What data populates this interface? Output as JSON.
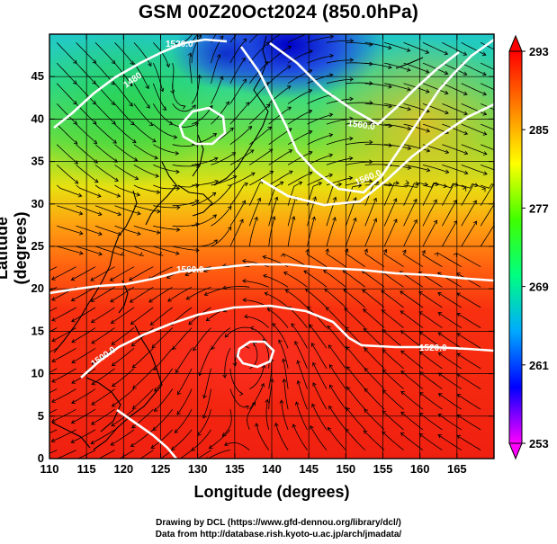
{
  "title": "GSM 00Z20Oct2024 (850.0hPa)",
  "xlabel": "Longitude (degrees)",
  "ylabel": "Latitude  (degrees)",
  "credits": {
    "line1": "Drawing by DCL (https://www.gfd-dennou.org/library/dcl/)",
    "line2": "Data from http://database.rish.kyoto-u.ac.jp/arch/jmadata/"
  },
  "map": {
    "lon_range": [
      110,
      170
    ],
    "lat_range": [
      0,
      50
    ],
    "lon_ticks": [
      "110",
      "115",
      "120",
      "125",
      "130",
      "135",
      "140",
      "145",
      "150",
      "155",
      "160",
      "165"
    ],
    "lat_ticks": [
      "0",
      "5",
      "10",
      "15",
      "20",
      "25",
      "30",
      "35",
      "40",
      "45"
    ],
    "contour_labels": [
      "1520.0",
      "1480",
      "1560.0",
      "1560.0",
      "1560.0",
      "1500.0",
      "1520.0"
    ],
    "low_center": [
      137,
      14
    ]
  },
  "colorbar": {
    "labels": [
      "293",
      "285",
      "277",
      "269",
      "261",
      "253"
    ],
    "min": 253,
    "max": 293,
    "colors": [
      "#ff00ff",
      "#0000ff",
      "#00aaff",
      "#00ff80",
      "#40ff00",
      "#ffff00",
      "#ff8000",
      "#ff0000"
    ]
  }
}
